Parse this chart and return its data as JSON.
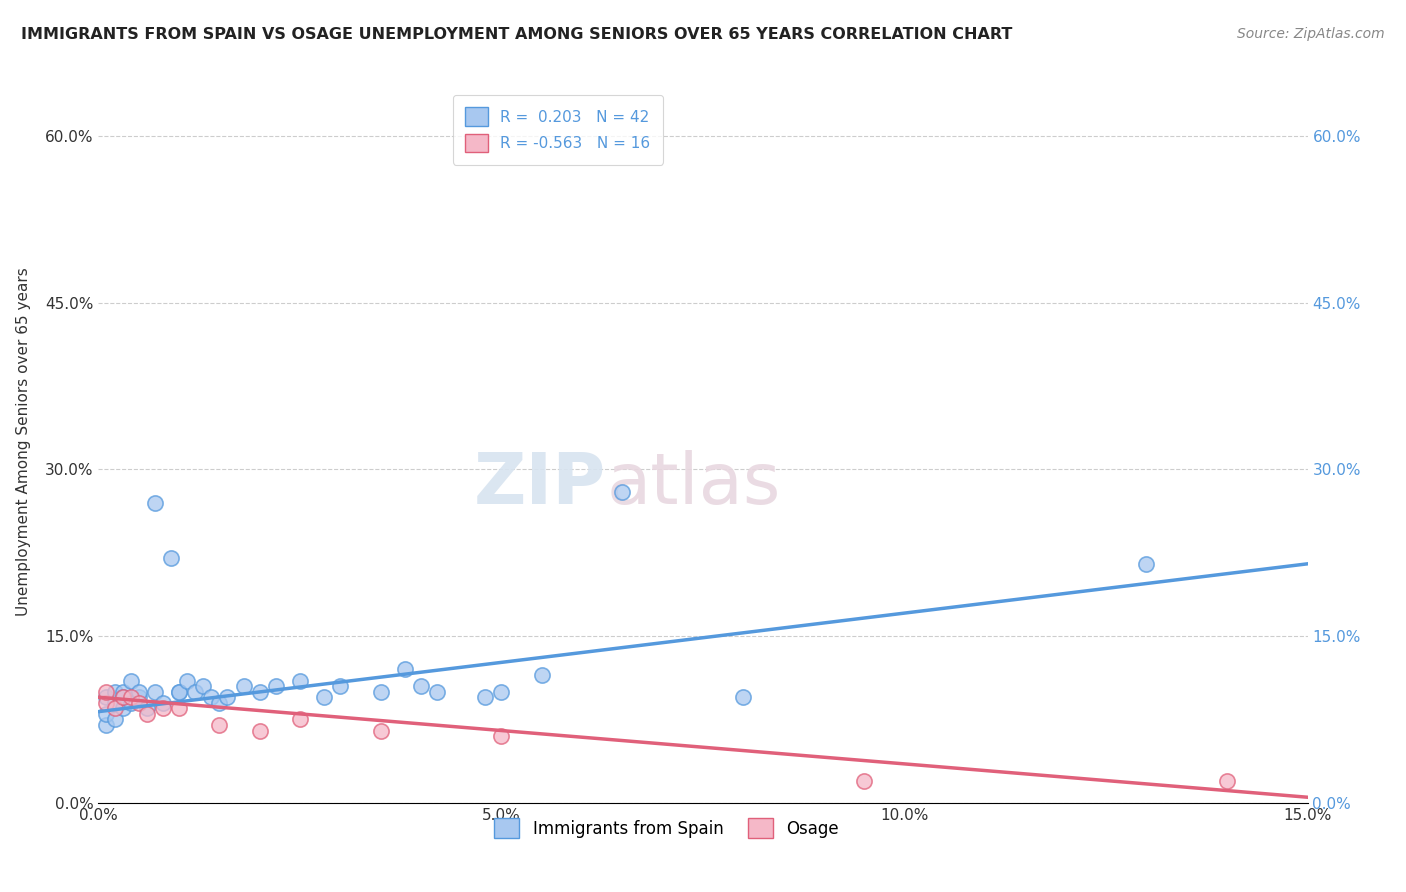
{
  "title": "IMMIGRANTS FROM SPAIN VS OSAGE UNEMPLOYMENT AMONG SENIORS OVER 65 YEARS CORRELATION CHART",
  "source": "Source: ZipAtlas.com",
  "ylabel": "Unemployment Among Seniors over 65 years",
  "xmin": 0.0,
  "xmax": 0.15,
  "ymin": 0.0,
  "ymax": 0.65,
  "yticks": [
    0.0,
    0.15,
    0.3,
    0.45,
    0.6
  ],
  "ytick_labels": [
    "0.0%",
    "15.0%",
    "30.0%",
    "45.0%",
    "60.0%"
  ],
  "xticks": [
    0.0,
    0.05,
    0.1,
    0.15
  ],
  "xtick_labels": [
    "0.0%",
    "5.0%",
    "10.0%",
    "15.0%"
  ],
  "legend_r1": "R =  0.203",
  "legend_n1": "N = 42",
  "legend_r2": "R = -0.563",
  "legend_n2": "N = 16",
  "color_blue": "#a8c8f0",
  "color_pink": "#f5b8c8",
  "line_color_blue": "#5599dd",
  "line_color_pink": "#e0607a",
  "right_tick_color": "#5599dd",
  "watermark_zip": "ZIP",
  "watermark_atlas": "atlas",
  "bg_color": "#ffffff",
  "grid_color": "#c8c8c8",
  "blue_scatter_x": [
    0.001,
    0.001,
    0.001,
    0.002,
    0.002,
    0.002,
    0.003,
    0.003,
    0.003,
    0.004,
    0.004,
    0.005,
    0.005,
    0.006,
    0.007,
    0.007,
    0.008,
    0.009,
    0.01,
    0.01,
    0.011,
    0.012,
    0.013,
    0.014,
    0.015,
    0.016,
    0.018,
    0.02,
    0.022,
    0.025,
    0.028,
    0.03,
    0.035,
    0.038,
    0.04,
    0.042,
    0.048,
    0.05,
    0.055,
    0.065,
    0.08,
    0.13
  ],
  "blue_scatter_y": [
    0.07,
    0.08,
    0.095,
    0.075,
    0.09,
    0.1,
    0.085,
    0.1,
    0.095,
    0.09,
    0.11,
    0.095,
    0.1,
    0.085,
    0.1,
    0.27,
    0.09,
    0.22,
    0.1,
    0.1,
    0.11,
    0.1,
    0.105,
    0.095,
    0.09,
    0.095,
    0.105,
    0.1,
    0.105,
    0.11,
    0.095,
    0.105,
    0.1,
    0.12,
    0.105,
    0.1,
    0.095,
    0.1,
    0.115,
    0.28,
    0.095,
    0.215
  ],
  "pink_scatter_x": [
    0.001,
    0.001,
    0.002,
    0.003,
    0.004,
    0.005,
    0.006,
    0.008,
    0.01,
    0.015,
    0.02,
    0.025,
    0.035,
    0.05,
    0.095,
    0.14
  ],
  "pink_scatter_y": [
    0.09,
    0.1,
    0.085,
    0.095,
    0.095,
    0.09,
    0.08,
    0.085,
    0.085,
    0.07,
    0.065,
    0.075,
    0.065,
    0.06,
    0.02,
    0.02
  ],
  "blue_line_x": [
    0.0,
    0.15
  ],
  "blue_line_y": [
    0.082,
    0.215
  ],
  "pink_line_x": [
    0.0,
    0.15
  ],
  "pink_line_y": [
    0.095,
    0.005
  ]
}
